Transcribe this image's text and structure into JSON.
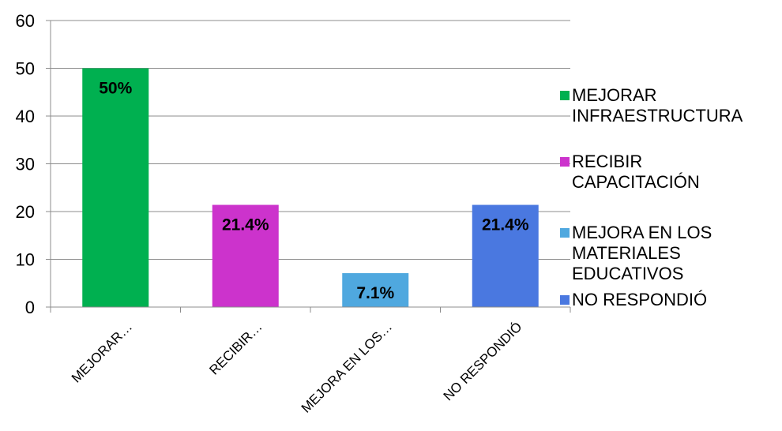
{
  "chart_data": {
    "type": "bar",
    "categories": [
      "MEJORAR…",
      "RECIBIR…",
      "MEJORA EN LOS…",
      "NO RESPONDIÓ"
    ],
    "values": [
      50,
      21.4,
      7.1,
      21.4
    ],
    "data_labels": [
      "50%",
      "21.4%",
      "7.1%",
      "21.4%"
    ],
    "colors": [
      "#00B050",
      "#CC33CC",
      "#4FA8DF",
      "#4A78E0"
    ],
    "ylim": [
      0,
      60
    ],
    "yticks": [
      "0",
      "10",
      "20",
      "30",
      "40",
      "50",
      "60"
    ],
    "grid": true,
    "legend_position": "right",
    "legend": [
      {
        "lines": [
          "MEJORAR",
          "INFRAESTRUCTURA"
        ],
        "color": "#00B050"
      },
      {
        "lines": [
          "RECIBIR",
          "CAPACITACIÓN"
        ],
        "color": "#CC33CC"
      },
      {
        "lines": [
          "MEJORA EN LOS",
          "MATERIALES",
          "EDUCATIVOS"
        ],
        "color": "#4FA8DF"
      },
      {
        "lines": [
          "NO RESPONDIÓ"
        ],
        "color": "#4A78E0"
      }
    ],
    "title": "",
    "xlabel": "",
    "ylabel": ""
  }
}
